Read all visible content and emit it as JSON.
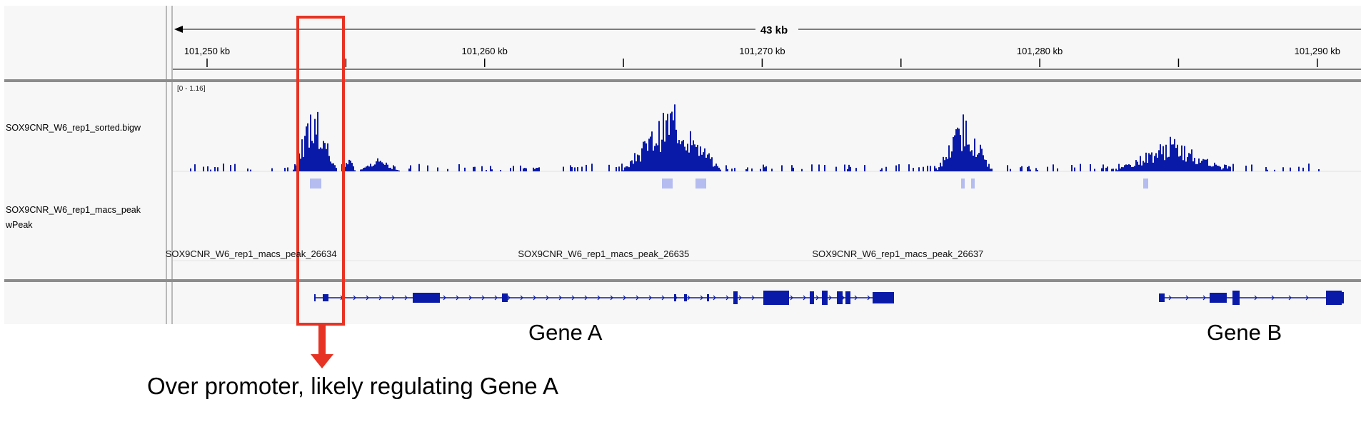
{
  "ruler": {
    "span": "43 kb",
    "ticks": [
      {
        "pos": 101250,
        "label": "101,250 kb"
      },
      {
        "pos": 101260,
        "label": "101,260 kb"
      },
      {
        "pos": 101270,
        "label": "101,270 kb"
      },
      {
        "pos": 101280,
        "label": "101,280 kb"
      },
      {
        "pos": 101290,
        "label": "101,290 kb"
      }
    ],
    "minor_ticks": [
      101255,
      101265,
      101275,
      101285
    ]
  },
  "tracks": {
    "bigwig": {
      "name": "SOX9CNR_W6_rep1_sorted.bigw",
      "data_range": "[0 - 1.16]",
      "color": "#0a1aa8"
    },
    "peaks": {
      "name": "SOX9CNR_W6_rep1_macs_peak\nwPeak",
      "color": "#b4bcf0",
      "labels": [
        {
          "text": "SOX9CNR_W6_rep1_macs_peak_26634",
          "pos": 101248.5
        },
        {
          "text": "SOX9CNR_W6_rep1_macs_peak_26635",
          "pos": 101261.2
        },
        {
          "text": "SOX9CNR_W6_rep1_macs_peak_26637",
          "pos": 101271.8
        }
      ]
    },
    "genes": {
      "color": "#0a1aa8"
    }
  },
  "annotations": {
    "gene_a_label": "Gene A",
    "gene_b_label": "Gene B",
    "note": "Over promoter, likely regulating Gene A",
    "highlight_color": "#e63323"
  }
}
